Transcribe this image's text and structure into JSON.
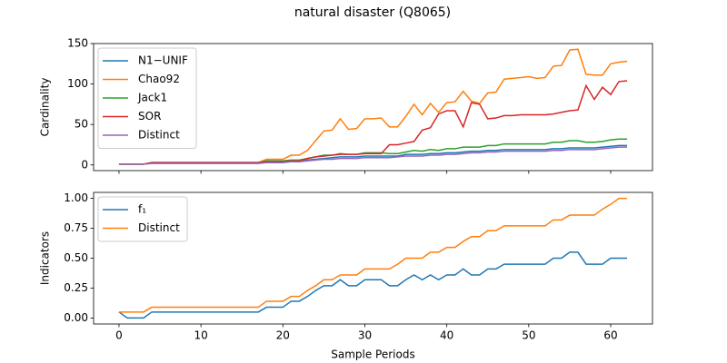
{
  "chart_data": [
    {
      "type": "line",
      "title": "natural disaster (Q8065)",
      "ylabel": "Cardinality",
      "x": [
        0,
        1,
        2,
        3,
        4,
        5,
        6,
        7,
        8,
        9,
        10,
        11,
        12,
        13,
        14,
        15,
        16,
        17,
        18,
        19,
        20,
        21,
        22,
        23,
        24,
        25,
        26,
        27,
        28,
        29,
        30,
        31,
        32,
        33,
        34,
        35,
        36,
        37,
        38,
        39,
        40,
        41,
        42,
        43,
        44,
        45,
        46,
        47,
        48,
        49,
        50,
        51,
        52,
        53,
        54,
        55,
        56,
        57,
        58,
        59,
        60,
        61,
        62
      ],
      "xlim": [
        -3.1,
        65.1
      ],
      "xticks": [
        0,
        10,
        20,
        30,
        40,
        50,
        60
      ],
      "ylim": [
        -7,
        150
      ],
      "yticks": [
        0,
        50,
        100,
        150
      ],
      "legend": "upper-left",
      "series": [
        {
          "name": "N1−UNIF",
          "color": "#1f77b4",
          "values": [
            1,
            1,
            1,
            1,
            2,
            2,
            2,
            2,
            2,
            2,
            2,
            2,
            2,
            2,
            2,
            2,
            2,
            2,
            3,
            3,
            3,
            4,
            4,
            6,
            7,
            8,
            9,
            10,
            10,
            10,
            11,
            11,
            11,
            11,
            11,
            13,
            13,
            13,
            14,
            14,
            15,
            15,
            16,
            17,
            17,
            18,
            18,
            19,
            19,
            19,
            19,
            19,
            19,
            20,
            20,
            21,
            21,
            21,
            21,
            22,
            23,
            24,
            24
          ]
        },
        {
          "name": "Chao92",
          "color": "#ff7f0e",
          "values": [
            1,
            1,
            1,
            1,
            3,
            3,
            3,
            3,
            3,
            3,
            3,
            3,
            3,
            3,
            3,
            3,
            3,
            3,
            7,
            7,
            7,
            12,
            12,
            18,
            30,
            42,
            43,
            57,
            44,
            45,
            57,
            57,
            58,
            47,
            47,
            60,
            75,
            62,
            76,
            65,
            77,
            78,
            91,
            79,
            76,
            89,
            90,
            106,
            107,
            108,
            109,
            107,
            108,
            122,
            123,
            142,
            143,
            112,
            111,
            111,
            125,
            127,
            128
          ]
        },
        {
          "name": "Jack1",
          "color": "#2ca02c",
          "values": [
            1,
            1,
            1,
            1,
            3,
            3,
            3,
            3,
            3,
            3,
            3,
            3,
            3,
            3,
            3,
            3,
            3,
            3,
            5,
            5,
            5,
            6,
            6,
            8,
            10,
            12,
            12,
            14,
            13,
            13,
            15,
            15,
            15,
            14,
            14,
            16,
            18,
            17,
            19,
            18,
            20,
            20,
            22,
            22,
            22,
            24,
            24,
            26,
            26,
            26,
            26,
            26,
            26,
            28,
            28,
            30,
            30,
            28,
            28,
            29,
            31,
            32,
            32
          ]
        },
        {
          "name": "SOR",
          "color": "#d62728",
          "values": [
            1,
            1,
            1,
            1,
            3,
            3,
            3,
            3,
            3,
            3,
            3,
            3,
            3,
            3,
            3,
            3,
            3,
            3,
            4,
            4,
            4,
            5,
            5,
            8,
            10,
            11,
            12,
            13,
            13,
            13,
            14,
            14,
            14,
            25,
            25,
            27,
            29,
            43,
            46,
            63,
            67,
            67,
            47,
            77,
            75,
            57,
            58,
            61,
            61,
            62,
            62,
            62,
            62,
            63,
            65,
            67,
            68,
            98,
            81,
            96,
            87,
            103,
            104
          ]
        },
        {
          "name": "Distinct",
          "color": "#9467bd",
          "values": [
            1,
            1,
            1,
            1,
            2,
            2,
            2,
            2,
            2,
            2,
            2,
            2,
            2,
            2,
            2,
            2,
            2,
            2,
            3,
            3,
            3,
            4,
            4,
            5,
            6,
            7,
            7,
            8,
            8,
            8,
            9,
            9,
            9,
            9,
            10,
            11,
            11,
            11,
            12,
            12,
            13,
            13,
            14,
            15,
            15,
            16,
            16,
            17,
            17,
            17,
            17,
            17,
            17,
            18,
            18,
            19,
            19,
            19,
            19,
            20,
            21,
            22,
            22
          ]
        }
      ]
    },
    {
      "type": "line",
      "xlabel": "Sample Periods",
      "ylabel": "Indicators",
      "x": [
        0,
        1,
        2,
        3,
        4,
        5,
        6,
        7,
        8,
        9,
        10,
        11,
        12,
        13,
        14,
        15,
        16,
        17,
        18,
        19,
        20,
        21,
        22,
        23,
        24,
        25,
        26,
        27,
        28,
        29,
        30,
        31,
        32,
        33,
        34,
        35,
        36,
        37,
        38,
        39,
        40,
        41,
        42,
        43,
        44,
        45,
        46,
        47,
        48,
        49,
        50,
        51,
        52,
        53,
        54,
        55,
        56,
        57,
        58,
        59,
        60,
        61,
        62
      ],
      "xlim": [
        -3.1,
        65.1
      ],
      "xticks": [
        0,
        10,
        20,
        30,
        40,
        50,
        60
      ],
      "ylim": [
        -0.05,
        1.05
      ],
      "yticks": [
        {
          "value": 0,
          "label": "0.00"
        },
        {
          "value": 0.25,
          "label": "0.25"
        },
        {
          "value": 0.5,
          "label": "0.50"
        },
        {
          "value": 0.75,
          "label": "0.75"
        },
        {
          "value": 1,
          "label": "1.00"
        }
      ],
      "legend": "upper-left",
      "series": [
        {
          "name": "f₁",
          "color": "#1f77b4",
          "values": [
            0.05,
            0,
            0,
            0,
            0.05,
            0.05,
            0.05,
            0.05,
            0.05,
            0.05,
            0.05,
            0.05,
            0.05,
            0.05,
            0.05,
            0.05,
            0.05,
            0.05,
            0.09,
            0.09,
            0.09,
            0.14,
            0.14,
            0.18,
            0.23,
            0.27,
            0.27,
            0.32,
            0.27,
            0.27,
            0.32,
            0.32,
            0.32,
            0.27,
            0.27,
            0.32,
            0.36,
            0.32,
            0.36,
            0.32,
            0.36,
            0.36,
            0.41,
            0.36,
            0.36,
            0.41,
            0.41,
            0.45,
            0.45,
            0.45,
            0.45,
            0.45,
            0.45,
            0.5,
            0.5,
            0.55,
            0.55,
            0.45,
            0.45,
            0.45,
            0.5,
            0.5,
            0.5
          ]
        },
        {
          "name": "Distinct",
          "color": "#ff7f0e",
          "values": [
            0.05,
            0.05,
            0.05,
            0.05,
            0.09,
            0.09,
            0.09,
            0.09,
            0.09,
            0.09,
            0.09,
            0.09,
            0.09,
            0.09,
            0.09,
            0.09,
            0.09,
            0.09,
            0.14,
            0.14,
            0.14,
            0.18,
            0.18,
            0.23,
            0.27,
            0.32,
            0.32,
            0.36,
            0.36,
            0.36,
            0.41,
            0.41,
            0.41,
            0.41,
            0.45,
            0.5,
            0.5,
            0.5,
            0.55,
            0.55,
            0.59,
            0.59,
            0.64,
            0.68,
            0.68,
            0.73,
            0.73,
            0.77,
            0.77,
            0.77,
            0.77,
            0.77,
            0.77,
            0.82,
            0.82,
            0.86,
            0.86,
            0.86,
            0.86,
            0.91,
            0.95,
            1,
            1
          ]
        }
      ]
    }
  ]
}
